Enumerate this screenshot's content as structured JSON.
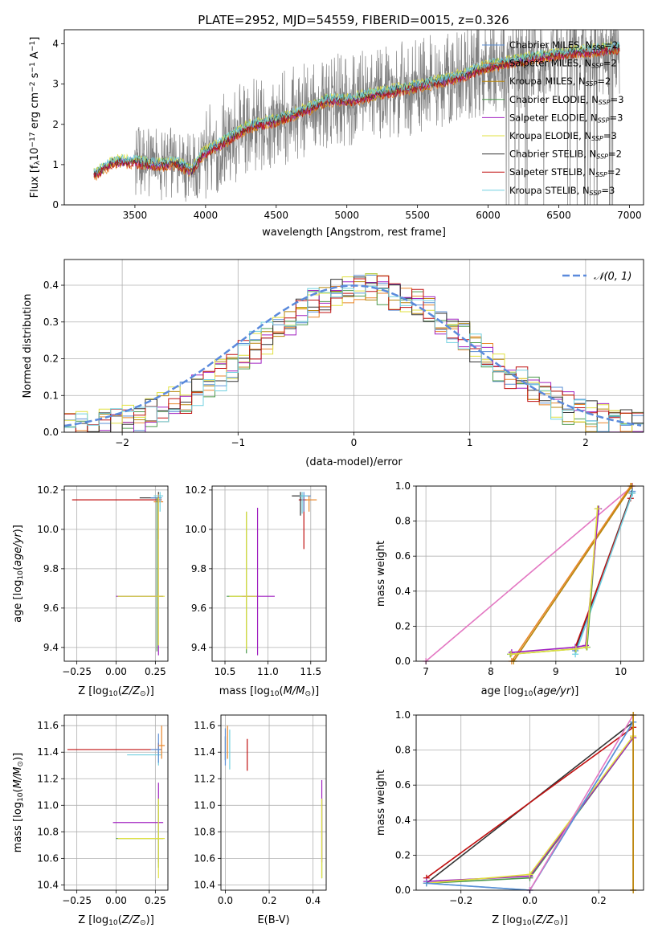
{
  "figure_title": "PLATE=2952, MJD=54559, FIBERID=0015, z=0.326",
  "models": [
    {
      "name": "Chabrier MILES",
      "nssp": "2",
      "color": "#5b8fd6"
    },
    {
      "name": "Salpeter MILES",
      "nssp": "2",
      "color": "#e8862a"
    },
    {
      "name": "Kroupa MILES",
      "nssp": "2",
      "color": "#b8860b"
    },
    {
      "name": "Chabrier ELODIE",
      "nssp": "3",
      "color": "#4d9a4d"
    },
    {
      "name": "Salpeter ELODIE",
      "nssp": "3",
      "color": "#a020c0"
    },
    {
      "name": "Kroupa ELODIE",
      "nssp": "3",
      "color": "#e0e040"
    },
    {
      "name": "Chabrier STELIB",
      "nssp": "2",
      "color": "#333333"
    },
    {
      "name": "Salpeter STELIB",
      "nssp": "2",
      "color": "#c01010"
    },
    {
      "name": "Kroupa STELIB",
      "nssp": "3",
      "color": "#70d0e0"
    }
  ],
  "chart_data": [
    {
      "id": "spectrum",
      "type": "line",
      "xlabel": "wavelength [Angstrom, rest frame]",
      "ylabel_main": "Flux [f",
      "ylabel_sub": "λ",
      "ylabel_rest": "10",
      "ylabel_sup": "−17",
      "ylabel_tail": " erg cm",
      "ylabel_sup2": "−2",
      "ylabel_tail2": " s",
      "ylabel_sup3": "−1",
      "ylabel_tail3": " A",
      "ylabel_sup4": "−1",
      "ylabel_end": "]",
      "xlim": [
        3000,
        7100
      ],
      "ylim": [
        0,
        4.35
      ],
      "xticks": [
        3500,
        4000,
        4500,
        5000,
        5500,
        6000,
        6500,
        7000
      ],
      "yticks": [
        0,
        1,
        2,
        3,
        4
      ],
      "legend_placement": "upper right",
      "nssp_label_prefix": "N",
      "nssp_label_sub": "SSP",
      "data_wavelength_range": [
        3210,
        6930
      ],
      "continuum": [
        [
          3210,
          0.75
        ],
        [
          3350,
          1.08
        ],
        [
          3500,
          1.08
        ],
        [
          3650,
          1.0
        ],
        [
          3800,
          1.05
        ],
        [
          3900,
          0.85
        ],
        [
          3980,
          1.28
        ],
        [
          4100,
          1.5
        ],
        [
          4300,
          1.95
        ],
        [
          4500,
          2.1
        ],
        [
          4700,
          2.35
        ],
        [
          4860,
          2.6
        ],
        [
          5000,
          2.6
        ],
        [
          5200,
          2.75
        ],
        [
          5500,
          2.95
        ],
        [
          5800,
          3.2
        ],
        [
          6000,
          3.45
        ],
        [
          6300,
          3.65
        ],
        [
          6600,
          3.8
        ],
        [
          6930,
          3.9
        ]
      ],
      "model_offsets": [
        0.02,
        -0.08,
        -0.05,
        0.04,
        -0.03,
        0.07,
        0.0,
        -0.06,
        0.06
      ]
    },
    {
      "id": "residuals",
      "type": "step_histogram",
      "xlabel": "(data-model)/error",
      "ylabel": "Normed distribution",
      "xlim": [
        -2.5,
        2.5
      ],
      "ylim": [
        0,
        0.47
      ],
      "xticks": [
        -2,
        -1,
        0,
        1,
        2
      ],
      "yticks": [
        0,
        0.1,
        0.2,
        0.3,
        0.4
      ],
      "reference_label": "𝒩(0, 1)",
      "reference_color": "#5b8adc",
      "bin_width": 0.1,
      "legend_placement": "upper right",
      "grid": true
    },
    {
      "id": "age_vs_Z",
      "type": "errorbar",
      "xlabel": "Z [log",
      "xlabel_sub": "10",
      "xlabel_end": "(Z/Z",
      "xlabel_sun": "⊙",
      "xlabel_close": ")]",
      "ylabel": "age  [log",
      "ylabel_sub": "10",
      "ylabel_end": "(age/yr)]",
      "xlim": [
        -0.33,
        0.33
      ],
      "ylim": [
        9.33,
        10.22
      ],
      "xticks": [
        -0.25,
        0.0,
        0.25
      ],
      "yticks": [
        9.4,
        9.6,
        9.8,
        10.0,
        10.2
      ],
      "grid": true,
      "points": [
        {
          "x": 0.27,
          "y": 10.15,
          "xerr": [
            0.55,
            0.02
          ],
          "yerr": [
            0.2,
            0.02
          ],
          "model": 7
        },
        {
          "x": 0.27,
          "y": 10.16,
          "xerr": [
            0.12,
            0.02
          ],
          "yerr": [
            0.12,
            0.03
          ],
          "model": 6
        },
        {
          "x": 0.27,
          "y": 10.16,
          "xerr": [
            0.05,
            0.02
          ],
          "yerr": [
            0.15,
            0.02
          ],
          "model": 0
        },
        {
          "x": 0.27,
          "y": 10.14,
          "xerr": [
            0.03,
            0.03
          ],
          "yerr": [
            0.1,
            0.04
          ],
          "model": 1
        },
        {
          "x": 0.28,
          "y": 10.17,
          "xerr": [
            0.04,
            0.02
          ],
          "yerr": [
            0.08,
            0.02
          ],
          "model": 8
        },
        {
          "x": 0.26,
          "y": 9.66,
          "xerr": [
            0.25,
            0.04
          ],
          "yerr": [
            0.28,
            0.5
          ],
          "model": 3
        },
        {
          "x": 0.27,
          "y": 9.66,
          "xerr": [
            0.27,
            0.03
          ],
          "yerr": [
            0.3,
            0.49
          ],
          "model": 4
        },
        {
          "x": 0.27,
          "y": 9.66,
          "xerr": [
            0.26,
            0.04
          ],
          "yerr": [
            0.25,
            0.5
          ],
          "model": 5
        }
      ]
    },
    {
      "id": "age_vs_mass",
      "type": "errorbar",
      "xlabel": "mass [log",
      "xlabel_sub": "10",
      "xlabel_end": "(M/M",
      "xlabel_sun": "⊙",
      "xlabel_close": ")]",
      "xlim": [
        10.35,
        11.68
      ],
      "ylim": [
        9.33,
        10.22
      ],
      "xticks": [
        10.5,
        11.0,
        11.5
      ],
      "yticks": [
        9.4,
        9.6,
        9.8,
        10.0,
        10.2
      ],
      "grid": true,
      "points": [
        {
          "x": 10.75,
          "y": 9.66,
          "xerr": [
            0.23,
            0.1
          ],
          "yerr": [
            0.29,
            0.43
          ],
          "model": 3
        },
        {
          "x": 10.88,
          "y": 9.66,
          "xerr": [
            0.18,
            0.2
          ],
          "yerr": [
            0.3,
            0.45
          ],
          "model": 4
        },
        {
          "x": 10.75,
          "y": 9.66,
          "xerr": [
            0.2,
            0.12
          ],
          "yerr": [
            0.27,
            0.43
          ],
          "model": 5
        },
        {
          "x": 11.42,
          "y": 10.15,
          "xerr": [
            0.06,
            0.04
          ],
          "yerr": [
            0.25,
            0.02
          ],
          "model": 7
        },
        {
          "x": 11.38,
          "y": 10.17,
          "xerr": [
            0.1,
            0.05
          ],
          "yerr": [
            0.1,
            0.02
          ],
          "model": 6
        },
        {
          "x": 11.42,
          "y": 10.17,
          "xerr": [
            0.03,
            0.08
          ],
          "yerr": [
            0.08,
            0.02
          ],
          "model": 0
        },
        {
          "x": 11.48,
          "y": 10.15,
          "xerr": [
            0.04,
            0.09
          ],
          "yerr": [
            0.06,
            0.02
          ],
          "model": 1
        },
        {
          "x": 11.4,
          "y": 10.17,
          "xerr": [
            0.03,
            0.06
          ],
          "yerr": [
            0.09,
            0.02
          ],
          "model": 8
        }
      ]
    },
    {
      "id": "massweight_vs_age",
      "type": "line",
      "xlabel": "age  [log",
      "xlabel_sub": "10",
      "xlabel_end": "(age/yr)]",
      "ylabel": "mass weight",
      "xlim": [
        6.85,
        10.35
      ],
      "ylim": [
        0,
        1
      ],
      "xticks": [
        7,
        8,
        9,
        10
      ],
      "yticks": [
        0.0,
        0.2,
        0.4,
        0.6,
        0.8,
        1.0
      ],
      "grid": true,
      "series": [
        {
          "model": "pink",
          "color": "#e377c2",
          "points": [
            [
              7.0,
              0.0
            ],
            [
              10.18,
              1.0
            ]
          ]
        },
        {
          "model": 1,
          "points": [
            [
              8.32,
              0.0
            ],
            [
              10.15,
              1.0
            ]
          ]
        },
        {
          "model": 2,
          "points": [
            [
              8.35,
              0.0
            ],
            [
              10.17,
              1.0
            ]
          ]
        },
        {
          "model": 0,
          "points": [
            [
              9.3,
              0.06
            ],
            [
              10.18,
              0.97
            ]
          ]
        },
        {
          "model": 6,
          "points": [
            [
              9.3,
              0.07
            ],
            [
              10.17,
              0.96
            ]
          ]
        },
        {
          "model": 7,
          "points": [
            [
              9.3,
              0.08
            ],
            [
              10.15,
              0.93
            ]
          ]
        },
        {
          "model": 8,
          "points": [
            [
              9.3,
              0.04
            ],
            [
              10.18,
              0.96
            ]
          ]
        },
        {
          "model": 3,
          "points": [
            [
              8.3,
              0.04
            ],
            [
              9.3,
              0.07
            ],
            [
              9.48,
              0.08
            ],
            [
              9.65,
              0.87
            ]
          ]
        },
        {
          "model": 4,
          "points": [
            [
              8.32,
              0.05
            ],
            [
              9.3,
              0.08
            ],
            [
              9.46,
              0.09
            ],
            [
              9.66,
              0.87
            ]
          ]
        },
        {
          "model": 5,
          "points": [
            [
              8.31,
              0.04
            ],
            [
              9.31,
              0.07
            ],
            [
              9.47,
              0.08
            ],
            [
              9.64,
              0.87
            ]
          ]
        }
      ]
    },
    {
      "id": "mass_vs_Z",
      "type": "errorbar",
      "xlabel": "Z [log",
      "xlabel_sub": "10",
      "xlabel_end": "(Z/Z",
      "xlabel_sun": "⊙",
      "xlabel_close": ")]",
      "ylabel": "mass [log",
      "ylabel_sub": "10",
      "ylabel_end": "(M/M",
      "ylabel_sun": "⊙",
      "ylabel_close": ")]",
      "xlim": [
        -0.33,
        0.33
      ],
      "ylim": [
        10.36,
        11.68
      ],
      "xticks": [
        -0.25,
        0.0,
        0.25
      ],
      "yticks": [
        10.4,
        10.6,
        10.8,
        11.0,
        11.2,
        11.4,
        11.6
      ],
      "grid": true,
      "points": [
        {
          "x": 0.27,
          "y": 11.42,
          "xerr": [
            0.58,
            0.02
          ],
          "yerr": [
            0.05,
            0.05
          ],
          "model": 7
        },
        {
          "x": 0.27,
          "y": 11.38,
          "xerr": [
            0.2,
            0.02
          ],
          "yerr": [
            0.08,
            0.05
          ],
          "model": 8
        },
        {
          "x": 0.27,
          "y": 11.42,
          "xerr": [
            0.05,
            0.02
          ],
          "yerr": [
            0.1,
            0.12
          ],
          "model": 0
        },
        {
          "x": 0.29,
          "y": 11.45,
          "xerr": [
            0.02,
            0.02
          ],
          "yerr": [
            0.1,
            0.15
          ],
          "model": 1
        },
        {
          "x": 0.27,
          "y": 10.87,
          "xerr": [
            0.29,
            0.03
          ],
          "yerr": [
            0.3,
            0.3
          ],
          "model": 4
        },
        {
          "x": 0.27,
          "y": 10.75,
          "xerr": [
            0.27,
            0.03
          ],
          "yerr": [
            0.22,
            0.3
          ],
          "model": 3
        },
        {
          "x": 0.27,
          "y": 10.75,
          "xerr": [
            0.26,
            0.04
          ],
          "yerr": [
            0.3,
            0.3
          ],
          "model": 5
        }
      ]
    },
    {
      "id": "mass_vs_EBV",
      "type": "errorbar",
      "xlabel": "E(B-V)",
      "xlim": [
        -0.02,
        0.46
      ],
      "ylim": [
        10.36,
        11.68
      ],
      "xticks": [
        0.0,
        0.2,
        0.4
      ],
      "yticks": [
        10.4,
        10.6,
        10.8,
        11.0,
        11.2,
        11.4,
        11.6
      ],
      "grid": true,
      "points": [
        {
          "x": 0.0,
          "y": 11.42,
          "xerr": [
            0.0,
            0.0
          ],
          "yerr": [
            0.08,
            0.1
          ],
          "model": 6
        },
        {
          "x": 0.01,
          "y": 11.45,
          "xerr": [
            0.0,
            0.0
          ],
          "yerr": [
            0.1,
            0.15
          ],
          "model": 1
        },
        {
          "x": 0.0,
          "y": 11.38,
          "xerr": [
            0.0,
            0.0
          ],
          "yerr": [
            0.08,
            0.2
          ],
          "model": 0
        },
        {
          "x": 0.02,
          "y": 11.37,
          "xerr": [
            0.0,
            0.0
          ],
          "yerr": [
            0.1,
            0.2
          ],
          "model": 8
        },
        {
          "x": 0.1,
          "y": 11.38,
          "xerr": [
            0.0,
            0.0
          ],
          "yerr": [
            0.12,
            0.12
          ],
          "model": 7
        },
        {
          "x": 0.44,
          "y": 10.75,
          "xerr": [
            0.0,
            0.0
          ],
          "yerr": [
            0.3,
            0.3
          ],
          "model": 3
        },
        {
          "x": 0.44,
          "y": 10.87,
          "xerr": [
            0.0,
            0.0
          ],
          "yerr": [
            0.3,
            0.32
          ],
          "model": 4
        },
        {
          "x": 0.44,
          "y": 10.75,
          "xerr": [
            0.0,
            0.0
          ],
          "yerr": [
            0.3,
            0.3
          ],
          "model": 5
        }
      ]
    },
    {
      "id": "massweight_vs_Z",
      "type": "line",
      "xlabel": "Z [log",
      "xlabel_sub": "10",
      "xlabel_end": "(Z/Z",
      "xlabel_sun": "⊙",
      "xlabel_close": ")]",
      "ylabel": "mass weight",
      "xlim": [
        -0.33,
        0.33
      ],
      "ylim": [
        0,
        1
      ],
      "xticks": [
        -0.2,
        0.0,
        0.2
      ],
      "yticks": [
        0.0,
        0.2,
        0.4,
        0.6,
        0.8,
        1.0
      ],
      "grid": true,
      "series": [
        {
          "model": 6,
          "points": [
            [
              -0.3,
              0.04
            ],
            [
              0.3,
              0.96
            ]
          ]
        },
        {
          "model": 7,
          "points": [
            [
              -0.3,
              0.07
            ],
            [
              0.3,
              0.93
            ]
          ]
        },
        {
          "model": 3,
          "points": [
            [
              -0.3,
              0.04
            ],
            [
              0.0,
              0.07
            ],
            [
              0.3,
              0.87
            ]
          ]
        },
        {
          "model": 4,
          "points": [
            [
              -0.3,
              0.05
            ],
            [
              0.0,
              0.08
            ],
            [
              0.3,
              0.87
            ]
          ]
        },
        {
          "model": 5,
          "points": [
            [
              -0.3,
              0.04
            ],
            [
              0.0,
              0.09
            ],
            [
              0.3,
              0.88
            ]
          ]
        },
        {
          "model": 8,
          "points": [
            [
              -0.3,
              0.04
            ],
            [
              0.0,
              0.0
            ],
            [
              0.3,
              0.96
            ]
          ]
        },
        {
          "model": 0,
          "points": [
            [
              -0.3,
              0.04
            ],
            [
              0.0,
              0.0
            ],
            [
              0.3,
              0.96
            ]
          ]
        },
        {
          "model": "pink",
          "color": "#e377c2",
          "points": [
            [
              0.0,
              0.0
            ],
            [
              0.3,
              1.0
            ]
          ]
        },
        {
          "model": 1,
          "points": [
            [
              0.3,
              0.0
            ],
            [
              0.3,
              1.0
            ]
          ]
        },
        {
          "model": 2,
          "points": [
            [
              0.3,
              0.0
            ],
            [
              0.3,
              1.0
            ]
          ]
        }
      ]
    }
  ]
}
